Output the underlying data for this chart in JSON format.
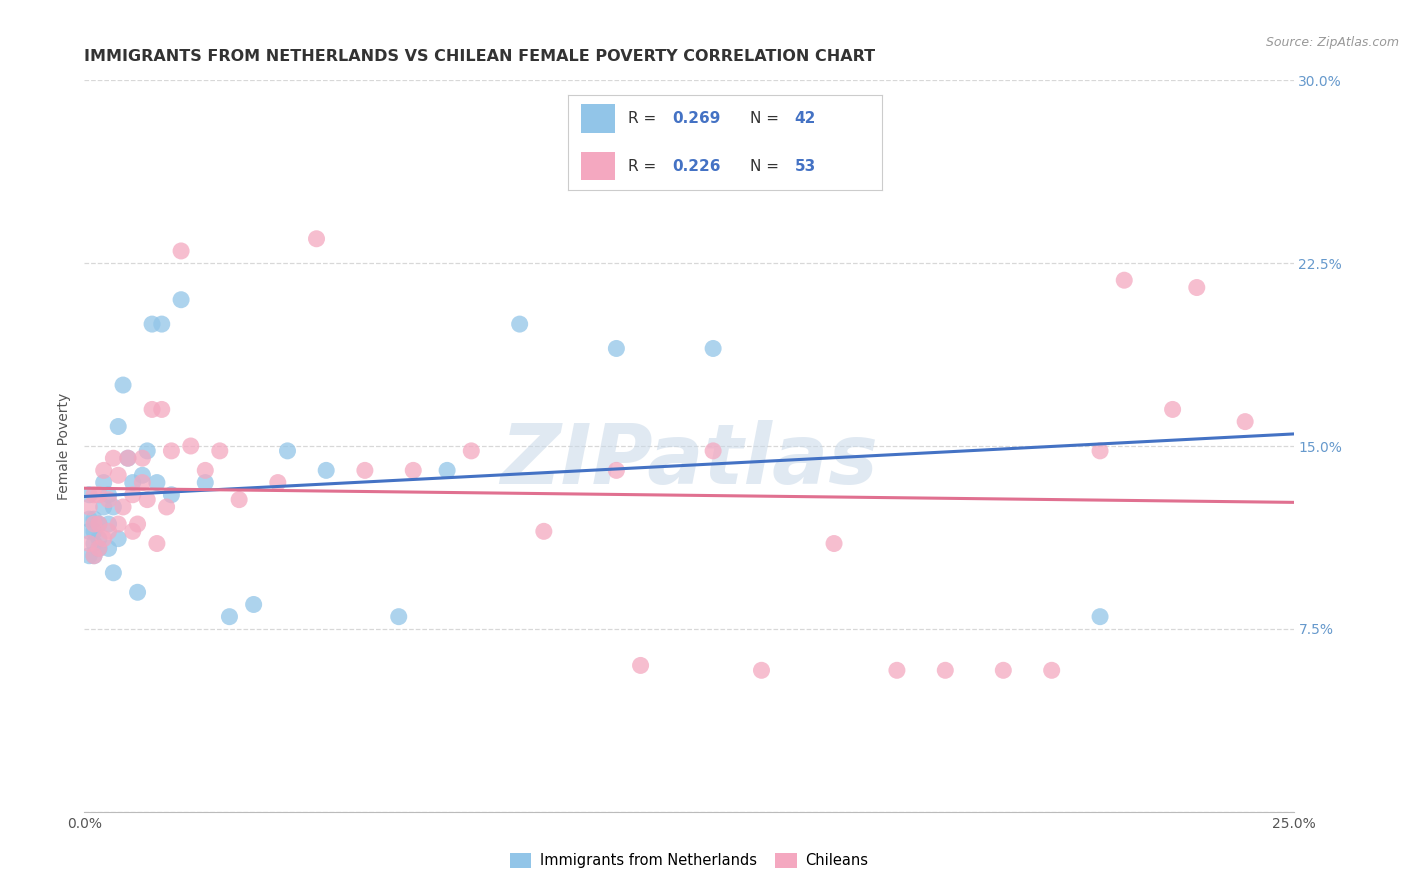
{
  "title": "IMMIGRANTS FROM NETHERLANDS VS CHILEAN FEMALE POVERTY CORRELATION CHART",
  "source": "Source: ZipAtlas.com",
  "ylabel": "Female Poverty",
  "xlim": [
    0.0,
    0.25
  ],
  "ylim": [
    0.0,
    0.3
  ],
  "series1_label": "Immigrants from Netherlands",
  "series2_label": "Chileans",
  "series1_color": "#92C5E8",
  "series2_color": "#F4A8C0",
  "trendline1_color": "#4472C4",
  "trendline2_color": "#E07090",
  "watermark": "ZIPatlas",
  "background_color": "#ffffff",
  "grid_color": "#d8d8d8",
  "title_fontsize": 11.5,
  "axis_fontsize": 10,
  "tick_color": "#6699CC",
  "series1_x": [
    0.001,
    0.001,
    0.001,
    0.001,
    0.002,
    0.002,
    0.002,
    0.002,
    0.003,
    0.003,
    0.003,
    0.004,
    0.004,
    0.005,
    0.005,
    0.005,
    0.006,
    0.006,
    0.007,
    0.007,
    0.008,
    0.009,
    0.01,
    0.011,
    0.012,
    0.013,
    0.014,
    0.015,
    0.016,
    0.018,
    0.02,
    0.025,
    0.03,
    0.035,
    0.042,
    0.05,
    0.065,
    0.075,
    0.09,
    0.11,
    0.13,
    0.21
  ],
  "series1_y": [
    0.105,
    0.115,
    0.12,
    0.13,
    0.105,
    0.11,
    0.115,
    0.12,
    0.108,
    0.112,
    0.118,
    0.125,
    0.135,
    0.108,
    0.118,
    0.13,
    0.098,
    0.125,
    0.112,
    0.158,
    0.175,
    0.145,
    0.135,
    0.09,
    0.138,
    0.148,
    0.2,
    0.135,
    0.2,
    0.13,
    0.21,
    0.135,
    0.08,
    0.085,
    0.148,
    0.14,
    0.08,
    0.14,
    0.2,
    0.19,
    0.19,
    0.08
  ],
  "series2_x": [
    0.001,
    0.001,
    0.002,
    0.002,
    0.002,
    0.003,
    0.003,
    0.003,
    0.004,
    0.004,
    0.005,
    0.005,
    0.006,
    0.007,
    0.007,
    0.008,
    0.009,
    0.01,
    0.01,
    0.011,
    0.012,
    0.012,
    0.013,
    0.014,
    0.015,
    0.016,
    0.017,
    0.018,
    0.02,
    0.022,
    0.025,
    0.028,
    0.032,
    0.04,
    0.048,
    0.058,
    0.068,
    0.08,
    0.095,
    0.11,
    0.115,
    0.13,
    0.14,
    0.155,
    0.168,
    0.178,
    0.19,
    0.2,
    0.21,
    0.215,
    0.225,
    0.23,
    0.24
  ],
  "series2_y": [
    0.11,
    0.125,
    0.105,
    0.118,
    0.13,
    0.108,
    0.118,
    0.13,
    0.112,
    0.14,
    0.115,
    0.128,
    0.145,
    0.118,
    0.138,
    0.125,
    0.145,
    0.115,
    0.13,
    0.118,
    0.135,
    0.145,
    0.128,
    0.165,
    0.11,
    0.165,
    0.125,
    0.148,
    0.23,
    0.15,
    0.14,
    0.148,
    0.128,
    0.135,
    0.235,
    0.14,
    0.14,
    0.148,
    0.115,
    0.14,
    0.06,
    0.148,
    0.058,
    0.11,
    0.058,
    0.058,
    0.058,
    0.058,
    0.148,
    0.218,
    0.165,
    0.215,
    0.16
  ]
}
